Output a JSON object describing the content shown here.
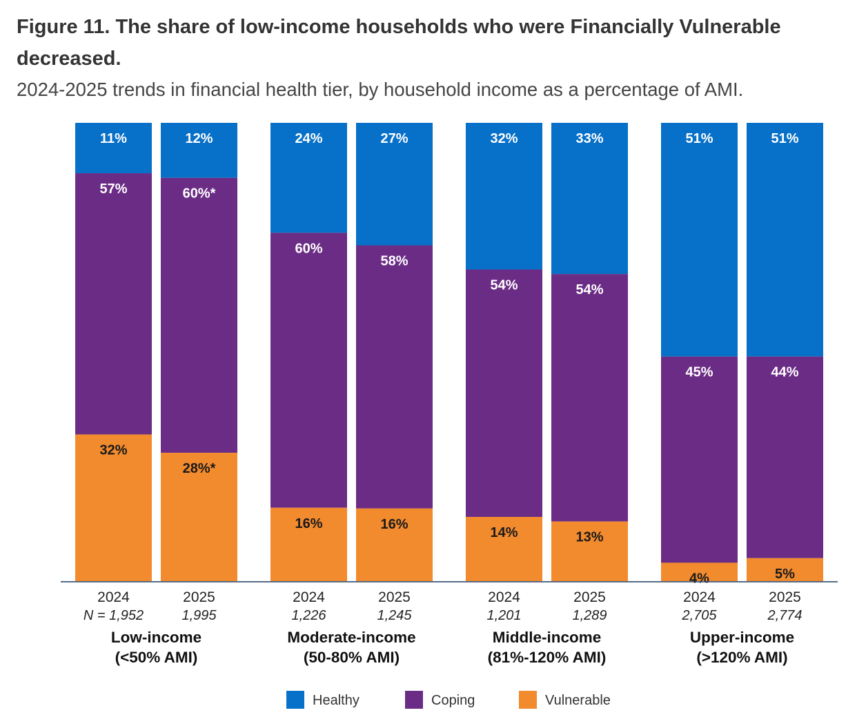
{
  "title": "Figure 11. The share of low-income households who were Financially Vulnerable decreased.",
  "subtitle": "2024-2025 trends in financial health tier, by household income as a percentage of AMI.",
  "colors": {
    "Healthy": "#0770c8",
    "Coping": "#6b2c85",
    "Vulnerable": "#f28a2e"
  },
  "chart_data": {
    "type": "bar",
    "stacked": true,
    "title": "Figure 11. The share of low-income households who were Financially Vulnerable decreased.",
    "subtitle": "2024-2025 trends in financial health tier, by household income as a percentage of AMI.",
    "xlabel": "",
    "ylabel": "",
    "ylim": [
      0,
      100
    ],
    "legend_position": "bottom",
    "groups": [
      {
        "name_line1": "Low-income",
        "name_line2": "(<50% AMI)",
        "bars": [
          {
            "year": "2024",
            "n_text": "N = 1,952",
            "Healthy": 11,
            "Coping": 57,
            "Vulnerable": 32,
            "labels": {
              "Healthy": "11%",
              "Coping": "57%",
              "Vulnerable": "32%"
            }
          },
          {
            "year": "2025",
            "n_text": "1,995",
            "Healthy": 12,
            "Coping": 60,
            "Vulnerable": 28,
            "labels": {
              "Healthy": "12%",
              "Coping": "60%*",
              "Vulnerable": "28%*"
            }
          }
        ]
      },
      {
        "name_line1": "Moderate-income",
        "name_line2": "(50-80% AMI)",
        "bars": [
          {
            "year": "2024",
            "n_text": "1,226",
            "Healthy": 24,
            "Coping": 60,
            "Vulnerable": 16,
            "labels": {
              "Healthy": "24%",
              "Coping": "60%",
              "Vulnerable": "16%"
            }
          },
          {
            "year": "2025",
            "n_text": "1,245",
            "Healthy": 27,
            "Coping": 58,
            "Vulnerable": 16,
            "labels": {
              "Healthy": "27%",
              "Coping": "58%",
              "Vulnerable": "16%"
            }
          }
        ]
      },
      {
        "name_line1": "Middle-income",
        "name_line2": "(81%-120% AMI)",
        "bars": [
          {
            "year": "2024",
            "n_text": "1,201",
            "Healthy": 32,
            "Coping": 54,
            "Vulnerable": 14,
            "labels": {
              "Healthy": "32%",
              "Coping": "54%",
              "Vulnerable": "14%"
            }
          },
          {
            "year": "2025",
            "n_text": "1,289",
            "Healthy": 33,
            "Coping": 54,
            "Vulnerable": 13,
            "labels": {
              "Healthy": "33%",
              "Coping": "54%",
              "Vulnerable": "13%"
            }
          }
        ]
      },
      {
        "name_line1": "Upper-income",
        "name_line2": "(>120% AMI)",
        "bars": [
          {
            "year": "2024",
            "n_text": "2,705",
            "Healthy": 51,
            "Coping": 45,
            "Vulnerable": 4,
            "labels": {
              "Healthy": "51%",
              "Coping": "45%",
              "Vulnerable": "4%"
            }
          },
          {
            "year": "2025",
            "n_text": "2,774",
            "Healthy": 51,
            "Coping": 44,
            "Vulnerable": 5,
            "labels": {
              "Healthy": "51%",
              "Coping": "44%",
              "Vulnerable": "5%"
            }
          }
        ]
      }
    ],
    "series": [
      {
        "name": "Healthy",
        "label": "Healthy"
      },
      {
        "name": "Coping",
        "label": "Coping"
      },
      {
        "name": "Vulnerable",
        "label": "Vulnerable"
      }
    ]
  }
}
